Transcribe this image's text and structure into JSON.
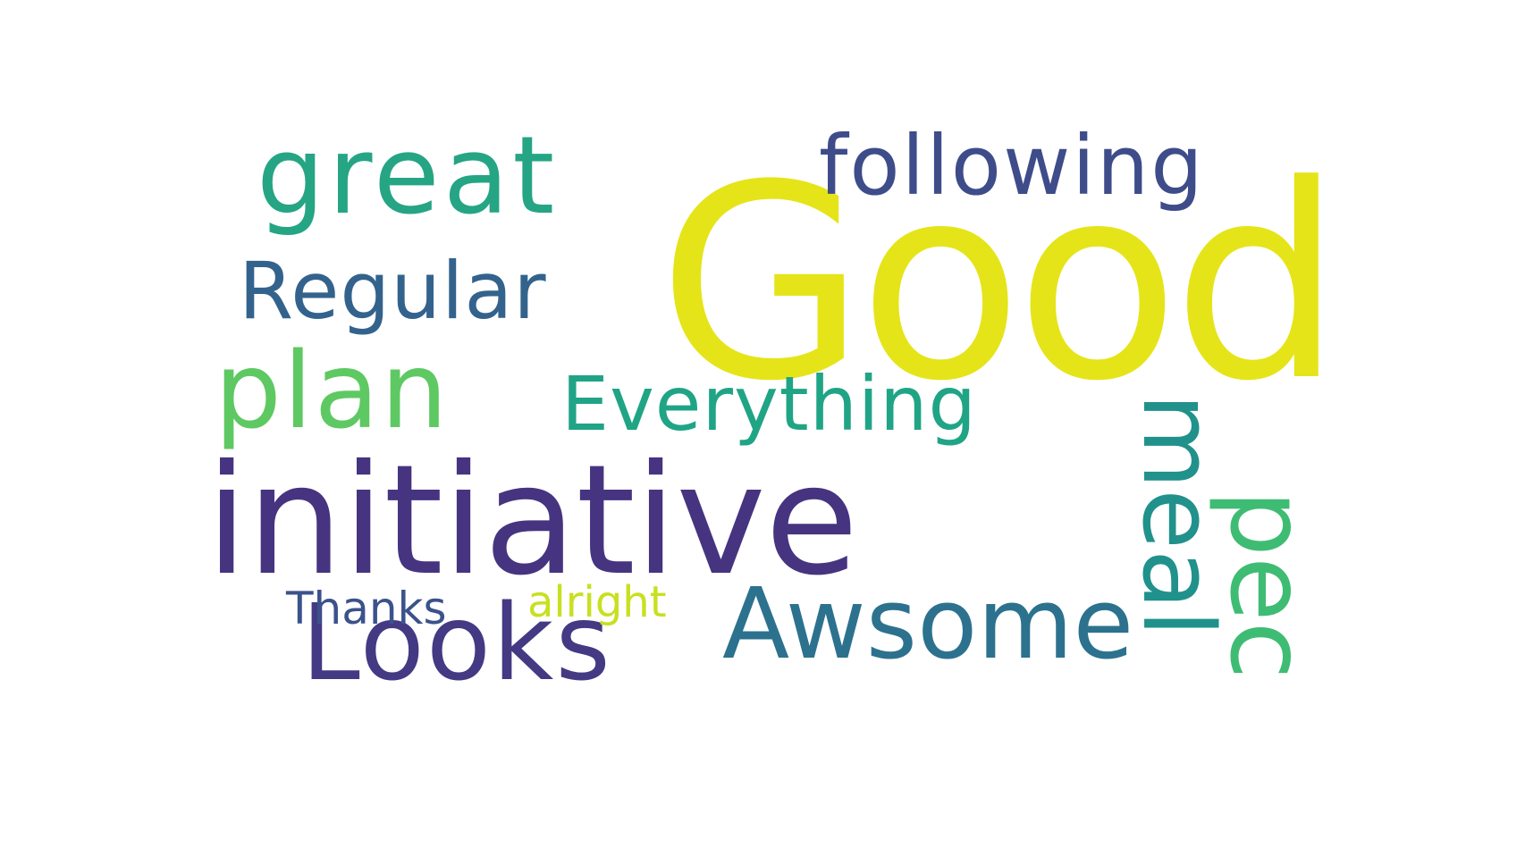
{
  "words": [
    {
      "text": "Good",
      "color": "#e5e419"
    },
    {
      "text": "initiative",
      "color": "#463480"
    },
    {
      "text": "great",
      "color": "#25a584"
    },
    {
      "text": "following",
      "color": "#3e4c8a"
    },
    {
      "text": "Regular",
      "color": "#33638d"
    },
    {
      "text": "plan",
      "color": "#5ec962"
    },
    {
      "text": "Everything",
      "color": "#20a486"
    },
    {
      "text": "Looks",
      "color": "#443983"
    },
    {
      "text": "Awsome",
      "color": "#2c728e"
    },
    {
      "text": "Thanks",
      "color": "#3b528b"
    },
    {
      "text": "alright",
      "color": "#c8e020"
    },
    {
      "text": "meal",
      "color": "#21918c"
    },
    {
      "text": "pec",
      "color": "#3fbc73"
    }
  ]
}
